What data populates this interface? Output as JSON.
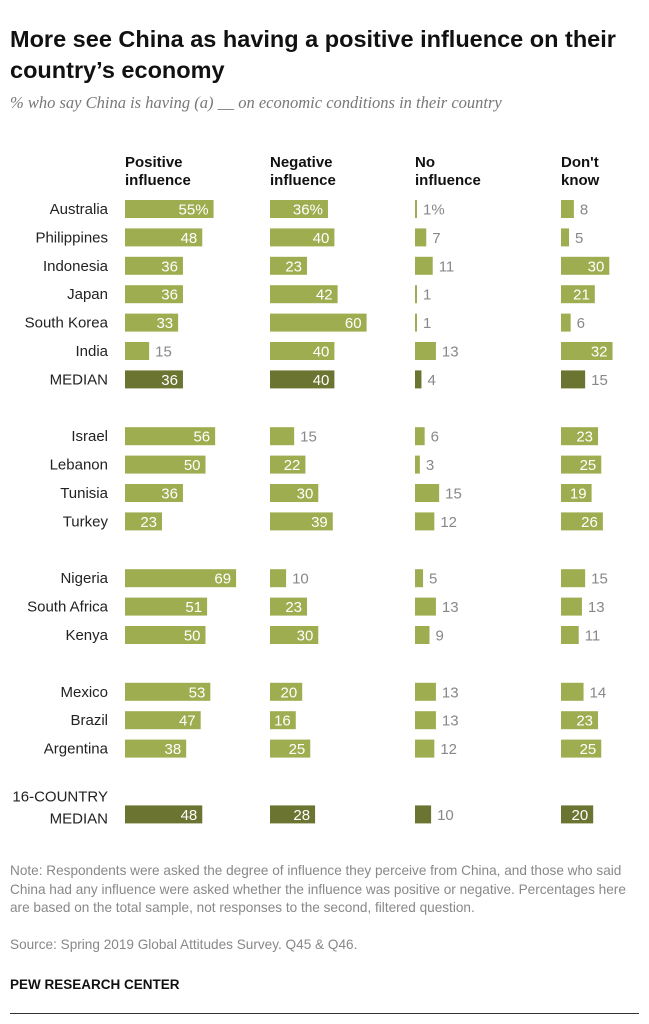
{
  "title": "More see China as having a positive influence on their country’s economy",
  "subtitle": "% who say China is having (a) __ on economic conditions in their country",
  "note": "Note: Respondents were asked the degree of influence they perceive from China, and those who said China had any influence were asked whether the influence was positive or negative. Percentages here are based on the total sample, not responses to the second, filtered question.",
  "source": "Source: Spring 2019 Global Attitudes Survey. Q45 & Q46.",
  "brand": "PEW RESEARCH CENTER",
  "colors": {
    "bar": "#9ead4f",
    "median_bar": "#6b7431",
    "label_inside": "#ffffff",
    "label_outside": "#888888"
  },
  "chart_data": {
    "type": "bar",
    "series": [
      {
        "name": "Positive influence",
        "header": [
          "Positive",
          "influence"
        ]
      },
      {
        "name": "Negative influence",
        "header": [
          "Negative",
          "influence"
        ]
      },
      {
        "name": "No influence",
        "header": [
          "No",
          "influence"
        ]
      },
      {
        "name": "Don't know",
        "header": [
          "Don't",
          "know"
        ]
      }
    ],
    "rows": [
      {
        "label": [
          "Australia"
        ],
        "values": [
          55,
          36,
          1,
          8
        ],
        "display": [
          "55%",
          "36%",
          "1%",
          "8"
        ],
        "group": 0
      },
      {
        "label": [
          "Philippines"
        ],
        "values": [
          48,
          40,
          7,
          5
        ],
        "display": [
          "48",
          "40",
          "7",
          "5"
        ],
        "group": 0
      },
      {
        "label": [
          "Indonesia"
        ],
        "values": [
          36,
          23,
          11,
          30
        ],
        "display": [
          "36",
          "23",
          "11",
          "30"
        ],
        "group": 0
      },
      {
        "label": [
          "Japan"
        ],
        "values": [
          36,
          42,
          1,
          21
        ],
        "display": [
          "36",
          "42",
          "1",
          "21"
        ],
        "group": 0
      },
      {
        "label": [
          "South Korea"
        ],
        "values": [
          33,
          60,
          1,
          6
        ],
        "display": [
          "33",
          "60",
          "1",
          "6"
        ],
        "group": 0
      },
      {
        "label": [
          "India"
        ],
        "values": [
          15,
          40,
          13,
          32
        ],
        "display": [
          "15",
          "40",
          "13",
          "32"
        ],
        "group": 0
      },
      {
        "label": [
          "MEDIAN"
        ],
        "values": [
          36,
          40,
          4,
          15
        ],
        "display": [
          "36",
          "40",
          "4",
          "15"
        ],
        "group": 0,
        "median": true
      },
      {
        "label": [
          "Israel"
        ],
        "values": [
          56,
          15,
          6,
          23
        ],
        "display": [
          "56",
          "15",
          "6",
          "23"
        ],
        "group": 1
      },
      {
        "label": [
          "Lebanon"
        ],
        "values": [
          50,
          22,
          3,
          25
        ],
        "display": [
          "50",
          "22",
          "3",
          "25"
        ],
        "group": 1
      },
      {
        "label": [
          "Tunisia"
        ],
        "values": [
          36,
          30,
          15,
          19
        ],
        "display": [
          "36",
          "30",
          "15",
          "19"
        ],
        "group": 1
      },
      {
        "label": [
          "Turkey"
        ],
        "values": [
          23,
          39,
          12,
          26
        ],
        "display": [
          "23",
          "39",
          "12",
          "26"
        ],
        "group": 1
      },
      {
        "label": [
          "Nigeria"
        ],
        "values": [
          69,
          10,
          5,
          15
        ],
        "display": [
          "69",
          "10",
          "5",
          "15"
        ],
        "group": 2
      },
      {
        "label": [
          "South Africa"
        ],
        "values": [
          51,
          23,
          13,
          13
        ],
        "display": [
          "51",
          "23",
          "13",
          "13"
        ],
        "group": 2
      },
      {
        "label": [
          "Kenya"
        ],
        "values": [
          50,
          30,
          9,
          11
        ],
        "display": [
          "50",
          "30",
          "9",
          "11"
        ],
        "group": 2
      },
      {
        "label": [
          "Mexico"
        ],
        "values": [
          53,
          20,
          13,
          14
        ],
        "display": [
          "53",
          "20",
          "13",
          "14"
        ],
        "group": 3
      },
      {
        "label": [
          "Brazil"
        ],
        "values": [
          47,
          16,
          13,
          23
        ],
        "display": [
          "47",
          "16",
          "13",
          "23"
        ],
        "group": 3
      },
      {
        "label": [
          "Argentina"
        ],
        "values": [
          38,
          25,
          12,
          25
        ],
        "display": [
          "38",
          "25",
          "12",
          "25"
        ],
        "group": 3
      },
      {
        "label": [
          "16-COUNTRY",
          "MEDIAN"
        ],
        "values": [
          48,
          28,
          10,
          20
        ],
        "display": [
          "48",
          "28",
          "10",
          "20"
        ],
        "group": 4,
        "median": true
      }
    ]
  }
}
